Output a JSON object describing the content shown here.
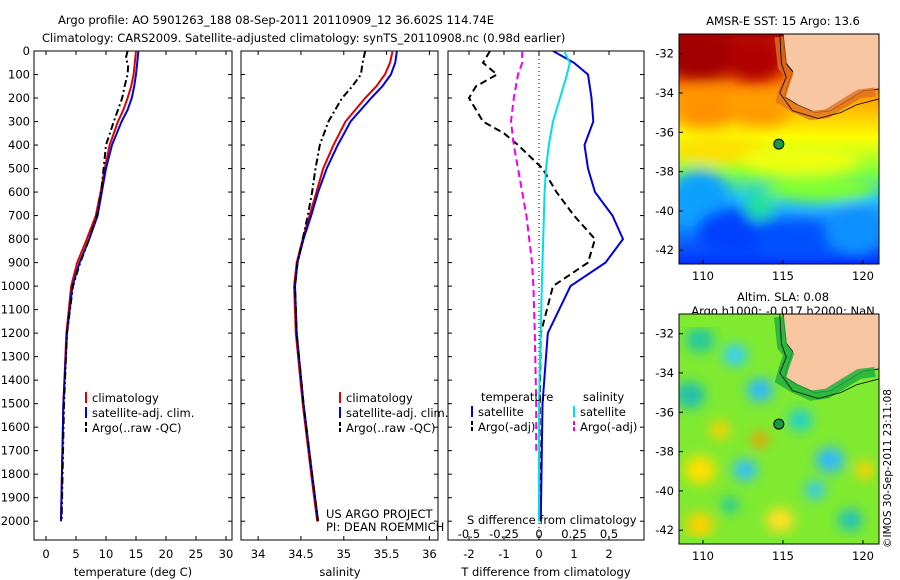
{
  "header": {
    "line1": "Argo profile: AO 5901263_188 08-Sep-2011 20110909_12 36.602S 114.74E",
    "line2": "Climatology: CARS2009. Satellite-adjusted climatology: synTS_20110908.nc (0.98d earlier)"
  },
  "credit": "©IMOS 30-Sep-2011 23:11:08",
  "project": {
    "line1": "US ARGO PROJECT",
    "line2": "PI: DEAN ROEMMICH"
  },
  "colors": {
    "climatology": "#e00000",
    "satellite": "#0000dd",
    "argo": "#000000",
    "sat_salinity": "#00e0e0",
    "argo_salinity": "#ee00ee",
    "land": "#f8c6a0"
  },
  "chart_data": [
    {
      "type": "line",
      "xlabel": "temperature (deg C)",
      "ylabel": "",
      "xlim": [
        -2,
        31
      ],
      "ylim": [
        2080,
        0
      ],
      "xticks": [
        "0",
        "5",
        "10",
        "15",
        "20",
        "25",
        "30"
      ],
      "yticks": [
        "0",
        "100",
        "200",
        "300",
        "400",
        "500",
        "600",
        "700",
        "800",
        "900",
        "1000",
        "1100",
        "1200",
        "1300",
        "1400",
        "1500",
        "1600",
        "1700",
        "1800",
        "1900",
        "2000"
      ],
      "legend": [
        "climatology",
        "satellite-adj. clim.",
        "Argo(..raw -QC)"
      ],
      "legend_position": "lower-center",
      "series": [
        {
          "name": "climatology",
          "depth": [
            0,
            50,
            100,
            150,
            200,
            250,
            300,
            400,
            500,
            600,
            700,
            800,
            900,
            1000,
            1200,
            1500,
            2000
          ],
          "values": [
            15.0,
            14.8,
            14.6,
            14.2,
            13.6,
            12.9,
            12.0,
            10.6,
            9.8,
            9.1,
            8.3,
            6.8,
            5.2,
            4.2,
            3.4,
            2.9,
            2.5
          ]
        },
        {
          "name": "satellite-adj. clim.",
          "depth": [
            0,
            50,
            100,
            150,
            200,
            250,
            300,
            400,
            500,
            600,
            700,
            800,
            900,
            1000,
            1200,
            1500,
            2000
          ],
          "values": [
            15.4,
            15.2,
            15.0,
            14.7,
            14.3,
            13.6,
            12.6,
            11.0,
            10.0,
            9.3,
            8.6,
            7.2,
            5.6,
            4.4,
            3.5,
            2.9,
            2.5
          ]
        },
        {
          "name": "Argo(..raw -QC)",
          "depth": [
            0,
            30,
            60,
            100,
            150,
            200,
            300,
            400,
            500,
            600,
            700,
            800,
            900,
            1000,
            1200,
            1500,
            2000
          ],
          "values": [
            13.6,
            13.3,
            13.7,
            13.6,
            13.1,
            12.7,
            11.3,
            10.0,
            9.6,
            9.2,
            8.5,
            7.2,
            5.7,
            4.5,
            3.5,
            3.0,
            2.6
          ]
        }
      ]
    },
    {
      "type": "line",
      "xlabel": "salinity",
      "ylabel": "",
      "xlim": [
        33.8,
        36.1
      ],
      "ylim": [
        2080,
        0
      ],
      "xticks": [
        "34",
        "34.5",
        "35",
        "35.5",
        "36"
      ],
      "legend": [
        "climatology",
        "satellite-adj. clim.",
        "Argo(..raw -QC)"
      ],
      "legend_position": "lower-center",
      "series": [
        {
          "name": "climatology",
          "depth": [
            0,
            50,
            100,
            150,
            200,
            300,
            400,
            500,
            600,
            700,
            800,
            900,
            1000,
            1200,
            1500,
            1800,
            2000
          ],
          "values": [
            35.57,
            35.54,
            35.48,
            35.38,
            35.25,
            35.02,
            34.88,
            34.76,
            34.68,
            34.6,
            34.52,
            34.45,
            34.42,
            34.44,
            34.52,
            34.62,
            34.69
          ]
        },
        {
          "name": "satellite-adj. clim.",
          "depth": [
            0,
            50,
            100,
            150,
            200,
            300,
            400,
            500,
            600,
            700,
            800,
            900,
            1000,
            1200,
            1500,
            1800,
            2000
          ],
          "values": [
            35.62,
            35.6,
            35.55,
            35.45,
            35.32,
            35.08,
            34.93,
            34.8,
            34.7,
            34.62,
            34.53,
            34.46,
            34.43,
            34.45,
            34.53,
            34.63,
            34.7
          ]
        },
        {
          "name": "Argo(..raw -QC)",
          "depth": [
            0,
            50,
            100,
            150,
            200,
            300,
            400,
            500,
            600,
            700,
            800,
            900,
            1000,
            1200,
            1500,
            1800,
            2000
          ],
          "values": [
            35.25,
            35.22,
            35.2,
            35.1,
            34.98,
            34.82,
            34.72,
            34.67,
            34.63,
            34.58,
            34.52,
            34.46,
            34.43,
            34.45,
            34.53,
            34.63,
            34.7
          ]
        }
      ]
    },
    {
      "type": "line",
      "xlabel": "T difference from climatology",
      "xlabel2": "S difference from climatology",
      "xlim": [
        -2.6,
        3.0
      ],
      "ylim": [
        2080,
        0
      ],
      "xticks": [
        "-2",
        "-1",
        "0",
        "1",
        "2"
      ],
      "xticks2": [
        "-0.5",
        "-0.25",
        "0",
        "0.25",
        "0.5"
      ],
      "xticks2_values": [
        -0.5,
        -0.25,
        0,
        0.25,
        0.5
      ],
      "xticks2_scale": 4,
      "legend_headers": [
        "temperature",
        "salinity"
      ],
      "legend": [
        "satellite",
        "Argo(-adj)",
        "satellite",
        "Argo(-adj)"
      ],
      "legend_position": "lower-center",
      "series": [
        {
          "name": "temperature satellite",
          "depth": [
            0,
            50,
            100,
            200,
            300,
            400,
            500,
            600,
            700,
            800,
            900,
            1000,
            1200,
            1500,
            2000
          ],
          "values": [
            0.4,
            1.0,
            1.4,
            1.5,
            1.55,
            1.3,
            1.4,
            1.6,
            2.1,
            2.4,
            1.9,
            0.9,
            0.25,
            0.1,
            0.05
          ]
        },
        {
          "name": "temperature Argo(-adj)",
          "depth": [
            0,
            50,
            100,
            150,
            200,
            300,
            350,
            400,
            500,
            600,
            700,
            800,
            900,
            1000,
            1200,
            1500,
            2000
          ],
          "values": [
            -1.4,
            -1.6,
            -1.2,
            -1.8,
            -2.0,
            -1.6,
            -1.0,
            -0.6,
            0.1,
            0.5,
            1.0,
            1.6,
            1.4,
            0.4,
            0.05,
            0.02,
            0.01
          ]
        },
        {
          "name": "salinity satellite",
          "depth": [
            0,
            50,
            100,
            200,
            300,
            400,
            500,
            600,
            800,
            1000,
            1500,
            2000
          ],
          "values": [
            0.18,
            0.22,
            0.2,
            0.15,
            0.1,
            0.07,
            0.05,
            0.04,
            0.03,
            0.02,
            0.0,
            0.0
          ]
        },
        {
          "name": "salinity Argo(-adj)",
          "depth": [
            0,
            50,
            100,
            200,
            300,
            400,
            500,
            600,
            700,
            800,
            900,
            1000,
            1200,
            1500,
            1700
          ],
          "values": [
            -0.12,
            -0.12,
            -0.15,
            -0.18,
            -0.2,
            -0.18,
            -0.15,
            -0.12,
            -0.09,
            -0.07,
            -0.05,
            -0.04,
            -0.03,
            -0.02,
            -0.02
          ]
        }
      ]
    },
    {
      "type": "heatmap",
      "title": "AMSR-E SST: 15 Argo: 13.6",
      "xlim": [
        108.5,
        121
      ],
      "ylim": [
        -42.7,
        -31
      ],
      "xticks": [
        "110",
        "115",
        "120"
      ],
      "yticks": [
        "-32",
        "-34",
        "-36",
        "-38",
        "-40",
        "-42"
      ],
      "marker": {
        "lon": 114.74,
        "lat": -36.602
      }
    },
    {
      "type": "heatmap",
      "title": "Altim. SLA: 0.08",
      "title2": "Argo h1000: -0.017 h2000: NaN",
      "xlim": [
        108.5,
        121
      ],
      "ylim": [
        -42.7,
        -31
      ],
      "xticks": [
        "110",
        "115",
        "120"
      ],
      "yticks": [
        "-32",
        "-34",
        "-36",
        "-38",
        "-40",
        "-42"
      ],
      "marker": {
        "lon": 114.74,
        "lat": -36.602
      }
    }
  ]
}
